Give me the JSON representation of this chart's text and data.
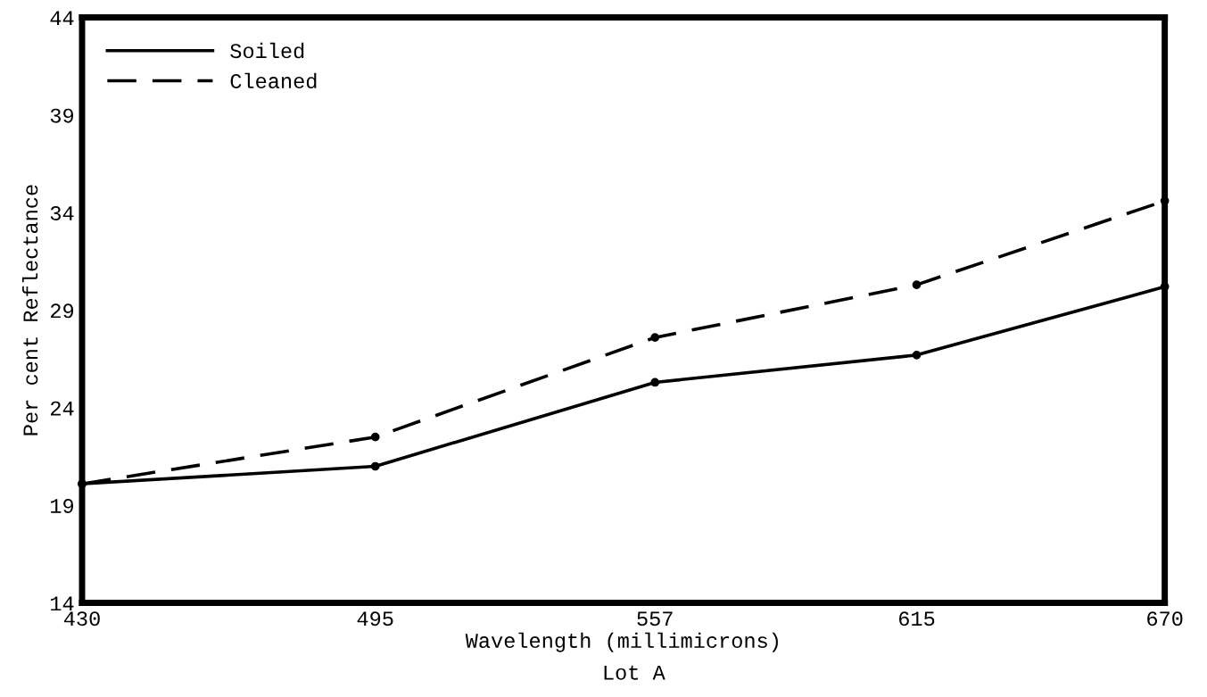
{
  "chart_data": {
    "type": "line",
    "xlabel": "Wavelength (millimicrons)",
    "ylabel": "Per cent Reflectance",
    "annotations": [
      "Lot A"
    ],
    "x": [
      430,
      495,
      557,
      615,
      670
    ],
    "series": [
      {
        "name": "Soiled",
        "color": "#000000",
        "line_style": "solid",
        "values": [
          20.1,
          21.0,
          25.3,
          26.7,
          30.2
        ]
      },
      {
        "name": "Cleaned",
        "color": "#000000",
        "line_style": "dashed",
        "values": [
          20.1,
          22.5,
          27.6,
          30.3,
          34.6
        ]
      }
    ],
    "xlim": [
      430,
      670
    ],
    "xticks": [
      430,
      495,
      557,
      615,
      670
    ],
    "ylim": [
      14,
      44
    ],
    "yticks": [
      14,
      19,
      24,
      29,
      34,
      39,
      44
    ],
    "grid": false,
    "legend": "top left",
    "marker": "circle"
  }
}
